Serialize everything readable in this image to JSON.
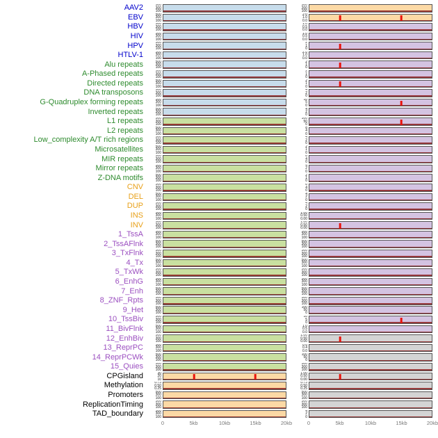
{
  "figure": {
    "x_ticks": [
      "0",
      "5kb",
      "10kb",
      "15kb",
      "20kb"
    ],
    "colors": {
      "label": {
        "virus": "#0000cc",
        "repeat": "#2e8b2e",
        "sv": "#e8a018",
        "chromhmm": "#9b4fc0",
        "other": "#000000"
      },
      "panel": {
        "blue": "#c7dceb",
        "green": "#c9e0a0",
        "orange": "#fcd9a5",
        "purple": "#d4c3e2",
        "gray": "#d4d4d4"
      },
      "spike": "#e8130c",
      "baseline": "#8d2020"
    }
  },
  "chart_data": {
    "type": "line",
    "title": "",
    "xlabel": "",
    "ylabel": "",
    "x_range_kb": [
      0,
      20
    ],
    "x_tick_labels": [
      "0",
      "5kb",
      "10kb",
      "15kb",
      "20kb"
    ],
    "layout": "44 feature tracks, two panels per track (left and right column), red vertical peaks at annotated kb positions, flat dark baseline otherwise",
    "tracks": [
      {
        "label": "AAV2",
        "group": "virus",
        "left_bg": "blue",
        "right_bg": "orange",
        "left_ticks": [
          "500",
          "300",
          "100"
        ],
        "right_ticks": [
          "300",
          "200",
          "100"
        ],
        "left_peaks_kb": [],
        "right_peaks_kb": []
      },
      {
        "label": "EBV",
        "group": "virus",
        "left_bg": "blue",
        "right_bg": "orange",
        "left_ticks": [
          "500",
          "300",
          "100"
        ],
        "right_ticks": [
          "2.0",
          "1.0",
          "0.0"
        ],
        "left_peaks_kb": [],
        "right_peaks_kb": [
          5,
          15
        ]
      },
      {
        "label": "HBV",
        "group": "virus",
        "left_bg": "blue",
        "right_bg": "purple",
        "left_ticks": [
          "500",
          "300",
          "100"
        ],
        "right_ticks": [
          "1.0",
          "0.5",
          "0.0"
        ],
        "left_peaks_kb": [],
        "right_peaks_kb": []
      },
      {
        "label": "HIV",
        "group": "virus",
        "left_bg": "blue",
        "right_bg": "purple",
        "left_ticks": [
          "500",
          "300",
          "100"
        ],
        "right_ticks": [
          "1.0",
          "0.5",
          "0.0"
        ],
        "left_peaks_kb": [],
        "right_peaks_kb": []
      },
      {
        "label": "HPV",
        "group": "virus",
        "left_bg": "blue",
        "right_bg": "purple",
        "left_ticks": [
          "500",
          "300",
          "100"
        ],
        "right_ticks": [
          "2",
          "1",
          "0"
        ],
        "left_peaks_kb": [],
        "right_peaks_kb": [
          5
        ]
      },
      {
        "label": "HTLV-1",
        "group": "virus",
        "left_bg": "blue",
        "right_bg": "purple",
        "left_ticks": [
          "500",
          "300",
          "100"
        ],
        "right_ticks": [
          "2.0",
          "1.0",
          "0.0"
        ],
        "left_peaks_kb": [],
        "right_peaks_kb": []
      },
      {
        "label": "Alu repeats",
        "group": "repeat",
        "left_bg": "blue",
        "right_bg": "purple",
        "left_ticks": [
          "500",
          "300",
          "100"
        ],
        "right_ticks": [
          "2",
          "1",
          "0"
        ],
        "left_peaks_kb": [],
        "right_peaks_kb": [
          5
        ]
      },
      {
        "label": "A-Phased repeats",
        "group": "repeat",
        "left_bg": "blue",
        "right_bg": "purple",
        "left_ticks": [
          "500",
          "300",
          "100"
        ],
        "right_ticks": [
          "2",
          "1",
          "0"
        ],
        "left_peaks_kb": [],
        "right_peaks_kb": []
      },
      {
        "label": "Directed repeats",
        "group": "repeat",
        "left_bg": "blue",
        "right_bg": "purple",
        "left_ticks": [
          "500",
          "300",
          "100"
        ],
        "right_ticks": [
          "2",
          "1",
          "0"
        ],
        "left_peaks_kb": [],
        "right_peaks_kb": [
          5
        ]
      },
      {
        "label": "DNA transposons",
        "group": "repeat",
        "left_bg": "blue",
        "right_bg": "purple",
        "left_ticks": [
          "500",
          "300",
          "100"
        ],
        "right_ticks": [
          "4",
          "2",
          "0"
        ],
        "left_peaks_kb": [],
        "right_peaks_kb": []
      },
      {
        "label": "G-Quadruplex forming repeats",
        "group": "repeat",
        "left_bg": "blue",
        "right_bg": "purple",
        "left_ticks": [
          "500",
          "300",
          "100"
        ],
        "right_ticks": [
          "10",
          "5",
          "0"
        ],
        "left_peaks_kb": [],
        "right_peaks_kb": [
          15
        ]
      },
      {
        "label": "Inverted repeats",
        "group": "repeat",
        "left_bg": "blue",
        "right_bg": "purple",
        "left_ticks": [
          "500",
          "300",
          "100"
        ],
        "right_ticks": [
          "4",
          "2",
          "0"
        ],
        "left_peaks_kb": [],
        "right_peaks_kb": []
      },
      {
        "label": "L1 repeats",
        "group": "repeat",
        "left_bg": "green",
        "right_bg": "purple",
        "left_ticks": [
          "500",
          "300",
          "100"
        ],
        "right_ticks": [
          "100",
          "50",
          "0"
        ],
        "left_peaks_kb": [],
        "right_peaks_kb": [
          15
        ]
      },
      {
        "label": "L2 repeats",
        "group": "repeat",
        "left_bg": "green",
        "right_bg": "purple",
        "left_ticks": [
          "500",
          "300",
          "100"
        ],
        "right_ticks": [
          "8",
          "4",
          "0"
        ],
        "left_peaks_kb": [],
        "right_peaks_kb": []
      },
      {
        "label": "Low_complexity A/T rich regions",
        "group": "repeat",
        "left_bg": "green",
        "right_bg": "purple",
        "left_ticks": [
          "500",
          "300",
          "100"
        ],
        "right_ticks": [
          "4",
          "2",
          "0"
        ],
        "left_peaks_kb": [],
        "right_peaks_kb": []
      },
      {
        "label": "Microsatellites",
        "group": "repeat",
        "left_bg": "green",
        "right_bg": "purple",
        "left_ticks": [
          "500",
          "300",
          "100"
        ],
        "right_ticks": [
          "2",
          "1",
          "0"
        ],
        "left_peaks_kb": [],
        "right_peaks_kb": []
      },
      {
        "label": "MIR repeats",
        "group": "repeat",
        "left_bg": "green",
        "right_bg": "purple",
        "left_ticks": [
          "500",
          "300",
          "100"
        ],
        "right_ticks": [
          "8",
          "4",
          "0"
        ],
        "left_peaks_kb": [],
        "right_peaks_kb": []
      },
      {
        "label": "Mirror repeats",
        "group": "repeat",
        "left_bg": "green",
        "right_bg": "purple",
        "left_ticks": [
          "500",
          "300",
          "100"
        ],
        "right_ticks": [
          "4",
          "2",
          "0"
        ],
        "left_peaks_kb": [],
        "right_peaks_kb": []
      },
      {
        "label": "Z-DNA motifs",
        "group": "repeat",
        "left_bg": "green",
        "right_bg": "purple",
        "left_ticks": [
          "500",
          "300",
          "100"
        ],
        "right_ticks": [
          "2",
          "1",
          "0"
        ],
        "left_peaks_kb": [],
        "right_peaks_kb": []
      },
      {
        "label": "CNV",
        "group": "sv",
        "left_bg": "green",
        "right_bg": "purple",
        "left_ticks": [
          "500",
          "300",
          "100"
        ],
        "right_ticks": [
          "8",
          "4",
          "0"
        ],
        "left_peaks_kb": [],
        "right_peaks_kb": []
      },
      {
        "label": "DEL",
        "group": "sv",
        "left_bg": "green",
        "right_bg": "purple",
        "left_ticks": [
          "500",
          "300",
          "100"
        ],
        "right_ticks": [
          "4",
          "2",
          "0"
        ],
        "left_peaks_kb": [],
        "right_peaks_kb": []
      },
      {
        "label": "DUP",
        "group": "sv",
        "left_bg": "green",
        "right_bg": "purple",
        "left_ticks": [
          "500",
          "300",
          "100"
        ],
        "right_ticks": [
          "4",
          "2",
          "0"
        ],
        "left_peaks_kb": [],
        "right_peaks_kb": []
      },
      {
        "label": "INS",
        "group": "sv",
        "left_bg": "green",
        "right_bg": "purple",
        "left_ticks": [
          "500",
          "300",
          "100"
        ],
        "right_ticks": [
          "1.00",
          "0.50",
          "0.00"
        ],
        "left_peaks_kb": [],
        "right_peaks_kb": []
      },
      {
        "label": "INV",
        "group": "sv",
        "left_bg": "green",
        "right_bg": "purple",
        "left_ticks": [
          "500",
          "300",
          "100"
        ],
        "right_ticks": [
          "1.00",
          "0.50",
          "0.00"
        ],
        "left_peaks_kb": [],
        "right_peaks_kb": [
          5
        ]
      },
      {
        "label": "1_TssA",
        "group": "chromhmm",
        "left_bg": "green",
        "right_bg": "purple",
        "left_ticks": [
          "500",
          "300",
          "100"
        ],
        "right_ticks": [
          "500",
          "300",
          "100"
        ],
        "left_peaks_kb": [],
        "right_peaks_kb": []
      },
      {
        "label": "2_TssAFlnk",
        "group": "chromhmm",
        "left_bg": "green",
        "right_bg": "purple",
        "left_ticks": [
          "500",
          "300",
          "100"
        ],
        "right_ticks": [
          "500",
          "300",
          "100"
        ],
        "left_peaks_kb": [],
        "right_peaks_kb": []
      },
      {
        "label": "3_TxFlnk",
        "group": "chromhmm",
        "left_bg": "green",
        "right_bg": "purple",
        "left_ticks": [
          "500",
          "300",
          "100"
        ],
        "right_ticks": [
          "500",
          "300",
          "100"
        ],
        "left_peaks_kb": [],
        "right_peaks_kb": []
      },
      {
        "label": "4_Tx",
        "group": "chromhmm",
        "left_bg": "green",
        "right_bg": "purple",
        "left_ticks": [
          "500",
          "300",
          "100"
        ],
        "right_ticks": [
          "500",
          "300",
          "100"
        ],
        "left_peaks_kb": [],
        "right_peaks_kb": []
      },
      {
        "label": "5_TxWk",
        "group": "chromhmm",
        "left_bg": "green",
        "right_bg": "purple",
        "left_ticks": [
          "500",
          "300",
          "100"
        ],
        "right_ticks": [
          "500",
          "300",
          "100"
        ],
        "left_peaks_kb": [],
        "right_peaks_kb": []
      },
      {
        "label": "6_EnhG",
        "group": "chromhmm",
        "left_bg": "green",
        "right_bg": "purple",
        "left_ticks": [
          "500",
          "300",
          "100"
        ],
        "right_ticks": [
          "500",
          "300",
          "100"
        ],
        "left_peaks_kb": [],
        "right_peaks_kb": []
      },
      {
        "label": "7_Enh",
        "group": "chromhmm",
        "left_bg": "green",
        "right_bg": "purple",
        "left_ticks": [
          "500",
          "300",
          "100"
        ],
        "right_ticks": [
          "500",
          "300",
          "100"
        ],
        "left_peaks_kb": [],
        "right_peaks_kb": []
      },
      {
        "label": "8_ZNF_Rpts",
        "group": "chromhmm",
        "left_bg": "green",
        "right_bg": "purple",
        "left_ticks": [
          "500",
          "300",
          "100"
        ],
        "right_ticks": [
          "500",
          "300",
          "100"
        ],
        "left_peaks_kb": [],
        "right_peaks_kb": []
      },
      {
        "label": "9_Het",
        "group": "chromhmm",
        "left_bg": "green",
        "right_bg": "purple",
        "left_ticks": [
          "500",
          "300",
          "100"
        ],
        "right_ticks": [
          "100",
          "50",
          "0"
        ],
        "left_peaks_kb": [],
        "right_peaks_kb": []
      },
      {
        "label": "10_TssBiv",
        "group": "chromhmm",
        "left_bg": "green",
        "right_bg": "purple",
        "left_ticks": [
          "500",
          "300",
          "100"
        ],
        "right_ticks": [
          "10",
          "5",
          "0"
        ],
        "left_peaks_kb": [],
        "right_peaks_kb": [
          15
        ]
      },
      {
        "label": "11_BivFlnk",
        "group": "chromhmm",
        "left_bg": "green",
        "right_bg": "purple",
        "left_ticks": [
          "500",
          "300",
          "100"
        ],
        "right_ticks": [
          "1.0",
          "0.5",
          "0.0"
        ],
        "left_peaks_kb": [],
        "right_peaks_kb": []
      },
      {
        "label": "12_EnhBiv",
        "group": "chromhmm",
        "left_bg": "green",
        "right_bg": "gray",
        "left_ticks": [
          "500",
          "300",
          "100"
        ],
        "right_ticks": [
          "1.00",
          "0.50",
          "0.00"
        ],
        "left_peaks_kb": [],
        "right_peaks_kb": [
          5
        ]
      },
      {
        "label": "13_ReprPC",
        "group": "chromhmm",
        "left_bg": "green",
        "right_bg": "gray",
        "left_ticks": [
          "500",
          "300",
          "100"
        ],
        "right_ticks": [
          "0.8",
          "0.4",
          "0.0"
        ],
        "left_peaks_kb": [],
        "right_peaks_kb": []
      },
      {
        "label": "14_ReprPCWk",
        "group": "chromhmm",
        "left_bg": "green",
        "right_bg": "gray",
        "left_ticks": [
          "500",
          "300",
          "100"
        ],
        "right_ticks": [
          "100",
          "50",
          "0"
        ],
        "left_peaks_kb": [],
        "right_peaks_kb": []
      },
      {
        "label": "15_Quies",
        "group": "chromhmm",
        "left_bg": "green",
        "right_bg": "gray",
        "left_ticks": [
          "500",
          "300",
          "100"
        ],
        "right_ticks": [
          "500",
          "300",
          "100"
        ],
        "left_peaks_kb": [],
        "right_peaks_kb": []
      },
      {
        "label": "CPGisland",
        "group": "other",
        "left_bg": "orange",
        "right_bg": "gray",
        "left_ticks": [
          "30",
          "20",
          "10"
        ],
        "right_ticks": [
          "1.00",
          "0.50",
          "0.00"
        ],
        "left_peaks_kb": [
          5,
          15
        ],
        "right_peaks_kb": [
          5
        ]
      },
      {
        "label": "Methylation",
        "group": "other",
        "left_bg": "orange",
        "right_bg": "gray",
        "left_ticks": [
          "0.75",
          "0.50",
          "0.25"
        ],
        "right_ticks": [
          "0.75",
          "0.50",
          "0.25"
        ],
        "left_peaks_kb": [],
        "right_peaks_kb": []
      },
      {
        "label": "Promoters",
        "group": "other",
        "left_bg": "orange",
        "right_bg": "gray",
        "left_ticks": [
          "500",
          "300",
          "100"
        ],
        "right_ticks": [
          "500",
          "300",
          "100"
        ],
        "left_peaks_kb": [],
        "right_peaks_kb": []
      },
      {
        "label": "ReplicationTiming",
        "group": "other",
        "left_bg": "orange",
        "right_bg": "gray",
        "left_ticks": [
          "500",
          "300",
          "100"
        ],
        "right_ticks": [
          "500",
          "300",
          "100"
        ],
        "left_peaks_kb": [],
        "right_peaks_kb": []
      },
      {
        "label": "TAD_boundary",
        "group": "other",
        "left_bg": "orange",
        "right_bg": "gray",
        "left_ticks": [
          "500",
          "300",
          "100"
        ],
        "right_ticks": [
          "4",
          "2",
          "0"
        ],
        "left_peaks_kb": [],
        "right_peaks_kb": []
      }
    ]
  }
}
